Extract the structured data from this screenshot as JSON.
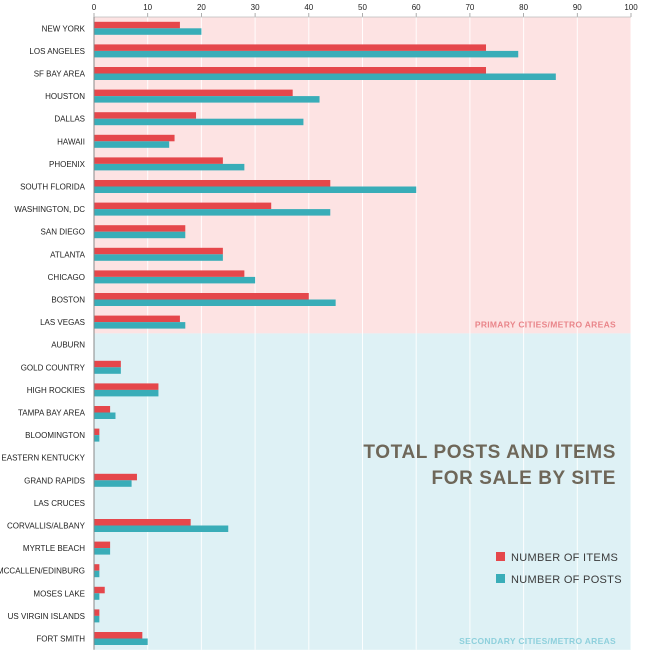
{
  "chart_data": {
    "type": "bar",
    "orientation": "horizontal",
    "title_lines": [
      "TOTAL POSTS AND ITEMS",
      "FOR SALE BY SITE"
    ],
    "xlim": [
      0,
      100
    ],
    "x_ticks": [
      0,
      10,
      20,
      30,
      40,
      50,
      60,
      70,
      80,
      90,
      100
    ],
    "grid": true,
    "legend_position": "bottom-right",
    "categories": [
      "NEW YORK",
      "LOS ANGELES",
      "SF BAY AREA",
      "HOUSTON",
      "DALLAS",
      "HAWAII",
      "PHOENIX",
      "SOUTH FLORIDA",
      "WASHINGTON, DC",
      "SAN DIEGO",
      "ATLANTA",
      "CHICAGO",
      "BOSTON",
      "LAS VEGAS",
      "AUBURN",
      "GOLD COUNTRY",
      "HIGH ROCKIES",
      "TAMPA BAY AREA",
      "BLOOMINGTON",
      "EASTERN KENTUCKY",
      "GRAND RAPIDS",
      "LAS CRUCES",
      "CORVALLIS/ALBANY",
      "MYRTLE BEACH",
      "MCCALLEN/EDINBURG",
      "MOSES LAKE",
      "US VIRGIN ISLANDS",
      "FORT SMITH"
    ],
    "series": [
      {
        "name": "NUMBER OF ITEMS",
        "color": "#e5474b",
        "values": [
          16,
          73,
          73,
          37,
          19,
          15,
          24,
          44,
          33,
          17,
          24,
          28,
          40,
          16,
          0,
          5,
          12,
          3,
          1,
          0,
          8,
          0,
          18,
          3,
          1,
          2,
          1,
          9
        ]
      },
      {
        "name": "NUMBER OF POSTS",
        "color": "#39adb8",
        "values": [
          20,
          79,
          86,
          42,
          39,
          14,
          28,
          60,
          44,
          17,
          24,
          30,
          45,
          17,
          0,
          5,
          12,
          4,
          1,
          0,
          7,
          0,
          25,
          3,
          1,
          1,
          1,
          10
        ]
      }
    ],
    "regions": [
      {
        "label": "PRIMARY CITIES/METRO AREAS",
        "count": 14,
        "color": "#fde3e3",
        "label_color": "#e9858a"
      },
      {
        "label": "SECONDARY CITIES/METRO AREAS",
        "count": 14,
        "color": "#def1f5",
        "label_color": "#8ed0dc"
      }
    ]
  }
}
